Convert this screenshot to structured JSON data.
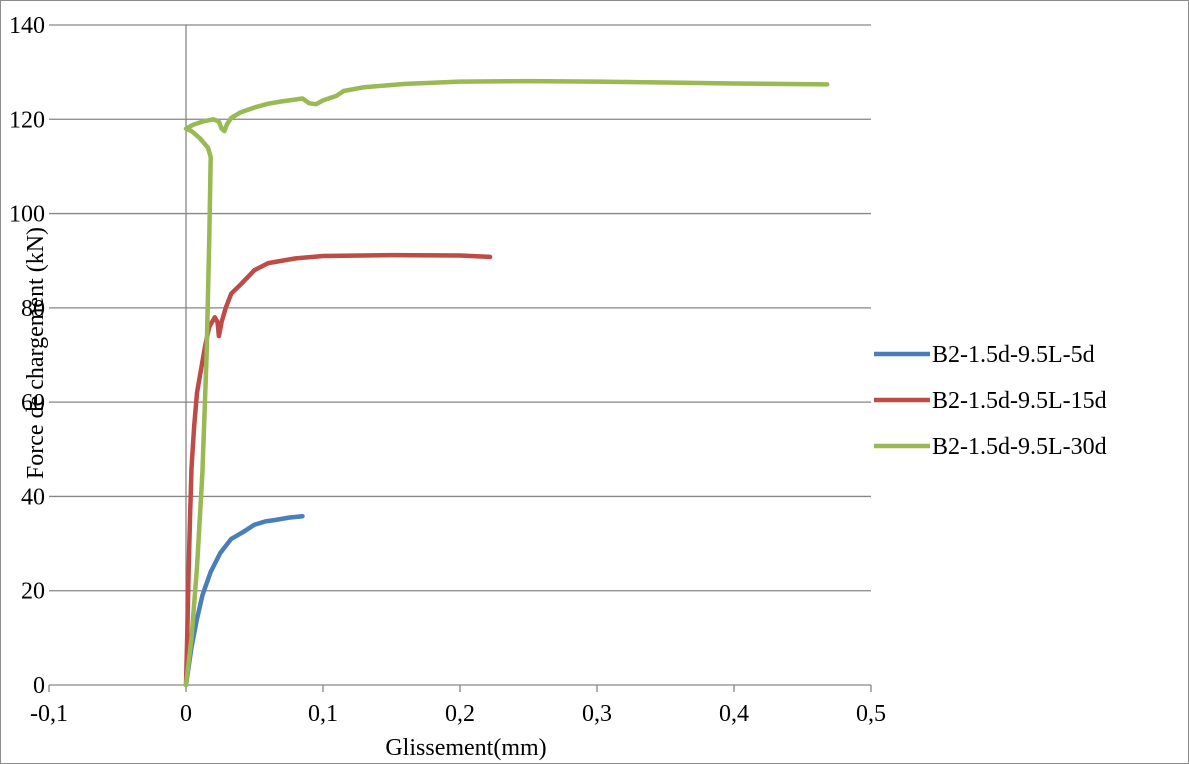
{
  "chart_data": {
    "type": "line",
    "title": "",
    "xlabel": "Glissement(mm)",
    "ylabel": "Force de chargement (kN)",
    "xlim": [
      -0.1,
      0.5
    ],
    "ylim": [
      0,
      140
    ],
    "x_ticks": [
      -0.1,
      0,
      0.1,
      0.2,
      0.3,
      0.4,
      0.5
    ],
    "x_tick_labels": [
      "-0,1",
      "0",
      "0,1",
      "0,2",
      "0,3",
      "0,4",
      "0,5"
    ],
    "y_ticks": [
      0,
      20,
      40,
      60,
      80,
      100,
      120,
      140
    ],
    "y_tick_labels": [
      "0",
      "20",
      "40",
      "60",
      "80",
      "100",
      "120",
      "140"
    ],
    "grid": "horizontal",
    "legend_position": "right",
    "series": [
      {
        "name": "B2-1.5d-9.5L-5d",
        "color": "#4a7ebb",
        "points": [
          [
            0,
            0
          ],
          [
            0.004,
            8
          ],
          [
            0.008,
            14
          ],
          [
            0.012,
            19
          ],
          [
            0.018,
            24
          ],
          [
            0.025,
            28
          ],
          [
            0.033,
            31
          ],
          [
            0.042,
            32.5
          ],
          [
            0.05,
            34
          ],
          [
            0.058,
            34.7
          ],
          [
            0.065,
            35
          ],
          [
            0.075,
            35.5
          ],
          [
            0.085,
            35.8
          ]
        ]
      },
      {
        "name": "B2-1.5d-9.5L-15d",
        "color": "#be4b48",
        "points": [
          [
            0,
            0
          ],
          [
            0.001,
            12
          ],
          [
            0.002,
            25
          ],
          [
            0.003,
            36
          ],
          [
            0.004,
            46
          ],
          [
            0.006,
            55
          ],
          [
            0.008,
            62
          ],
          [
            0.011,
            67
          ],
          [
            0.014,
            72
          ],
          [
            0.017,
            76
          ],
          [
            0.021,
            78
          ],
          [
            0.023,
            77
          ],
          [
            0.024,
            74
          ],
          [
            0.026,
            77
          ],
          [
            0.029,
            80
          ],
          [
            0.033,
            83
          ],
          [
            0.04,
            85
          ],
          [
            0.05,
            88
          ],
          [
            0.06,
            89.5
          ],
          [
            0.08,
            90.5
          ],
          [
            0.1,
            91
          ],
          [
            0.15,
            91.2
          ],
          [
            0.2,
            91.1
          ],
          [
            0.222,
            90.8
          ]
        ]
      },
      {
        "name": "B2-1.5d-9.5L-30d",
        "color": "#98b954",
        "points": [
          [
            0,
            0
          ],
          [
            0.004,
            10
          ],
          [
            0.008,
            25
          ],
          [
            0.012,
            45
          ],
          [
            0.015,
            70
          ],
          [
            0.017,
            95
          ],
          [
            0.018,
            112
          ],
          [
            0.016,
            114
          ],
          [
            0.01,
            116
          ],
          [
            0.004,
            117.5
          ],
          [
            0,
            118
          ],
          [
            0.005,
            118.8
          ],
          [
            0.012,
            119.5
          ],
          [
            0.02,
            120
          ],
          [
            0.024,
            119.5
          ],
          [
            0.026,
            118
          ],
          [
            0.028,
            117.5
          ],
          [
            0.03,
            119
          ],
          [
            0.033,
            120.3
          ],
          [
            0.04,
            121.5
          ],
          [
            0.05,
            122.5
          ],
          [
            0.06,
            123.3
          ],
          [
            0.07,
            123.8
          ],
          [
            0.08,
            124.2
          ],
          [
            0.085,
            124.4
          ],
          [
            0.09,
            123.4
          ],
          [
            0.095,
            123.2
          ],
          [
            0.1,
            124
          ],
          [
            0.11,
            125
          ],
          [
            0.115,
            126
          ],
          [
            0.13,
            126.8
          ],
          [
            0.16,
            127.5
          ],
          [
            0.2,
            128
          ],
          [
            0.25,
            128.1
          ],
          [
            0.3,
            128
          ],
          [
            0.35,
            127.8
          ],
          [
            0.4,
            127.6
          ],
          [
            0.468,
            127.4
          ]
        ]
      }
    ]
  }
}
